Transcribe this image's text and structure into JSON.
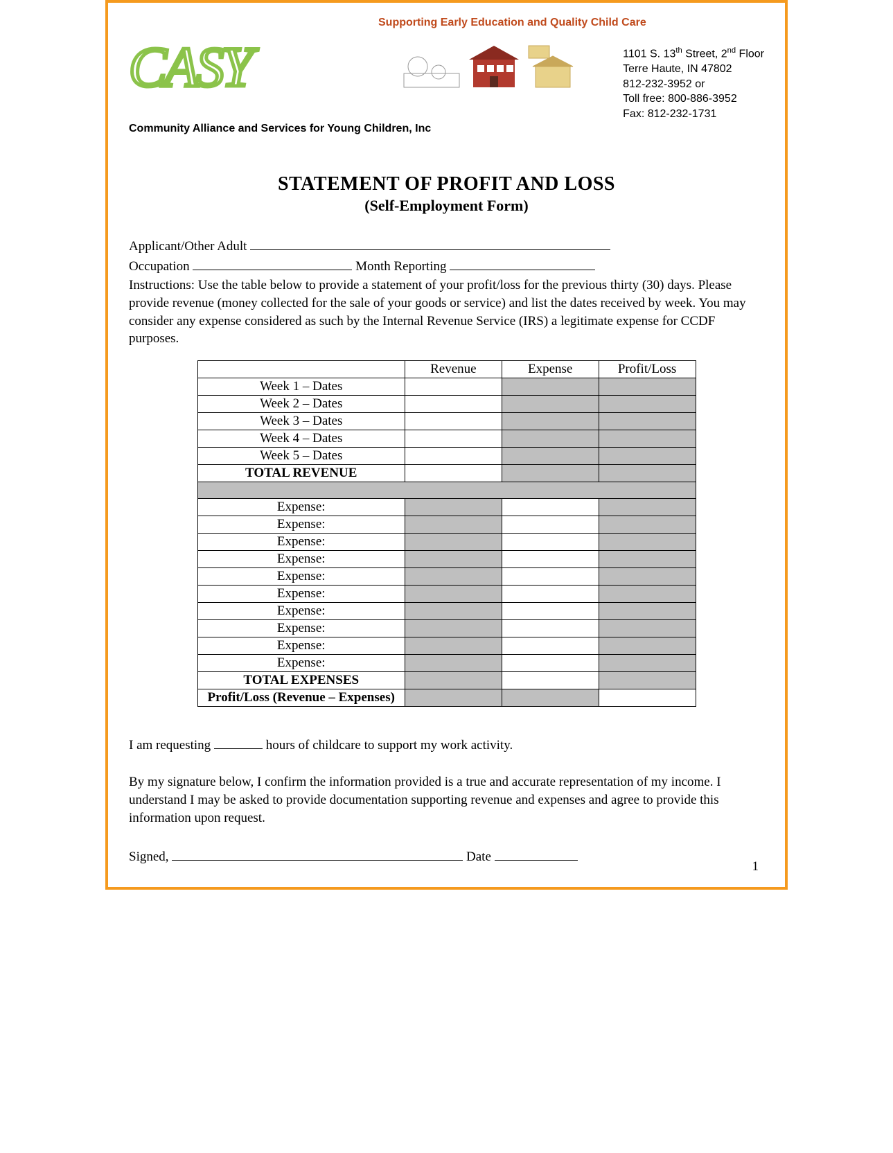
{
  "header": {
    "tagline": "Supporting Early Education and Quality Child Care",
    "logo_text": "CASY",
    "org_name": "Community Alliance and Services for Young Children, Inc",
    "address": {
      "line1_pre": "1101 S. 13",
      "line1_sup1": "th",
      "line1_mid": " Street, 2",
      "line1_sup2": "nd",
      "line1_post": " Floor",
      "line2": "Terre Haute, IN 47802",
      "line3": "812-232-3952 or",
      "line4": "Toll free: 800-886-3952",
      "line5": "Fax: 812-232-1731"
    }
  },
  "title": {
    "main": "STATEMENT OF PROFIT AND LOSS",
    "sub": "(Self-Employment Form)"
  },
  "fields": {
    "applicant_label": "Applicant/Other Adult ",
    "occupation_label": "Occupation ",
    "month_label": " Month Reporting "
  },
  "instructions": "Instructions: Use the table below to provide a statement of your profit/loss for the previous thirty (30) days. Please provide revenue (money collected for the sale of your goods or service) and list the dates received by week. You may consider any expense considered as such by the Internal Revenue Service (IRS) a legitimate expense for CCDF purposes.",
  "table": {
    "headers": {
      "c1": "",
      "c2": "Revenue",
      "c3": "Expense",
      "c4": "Profit/Loss"
    },
    "weeks": [
      "Week 1 – Dates",
      "Week 2 – Dates",
      "Week 3 – Dates",
      "Week 4 – Dates",
      "Week 5 – Dates"
    ],
    "total_revenue": "TOTAL REVENUE",
    "expense_label": "Expense:",
    "expense_count": 10,
    "total_expenses": "TOTAL EXPENSES",
    "profit_loss": "Profit/Loss (Revenue – Expenses)",
    "shade_color": "#bfbfbf"
  },
  "bottom": {
    "request_pre": "I am requesting ",
    "request_post": " hours of childcare to support my work activity.",
    "affirm": "By my signature below, I confirm the information provided is a true and accurate representation of my income. I understand I may be asked to provide documentation supporting revenue and expenses and agree to provide this information upon request.",
    "signed_label": "Signed, ",
    "date_label": " Date "
  },
  "page_num": "1",
  "colors": {
    "border": "#f59a1e",
    "tagline": "#c04a1c",
    "logo_green": "#8bc34a",
    "logo_stroke": "#5a8a2e"
  }
}
